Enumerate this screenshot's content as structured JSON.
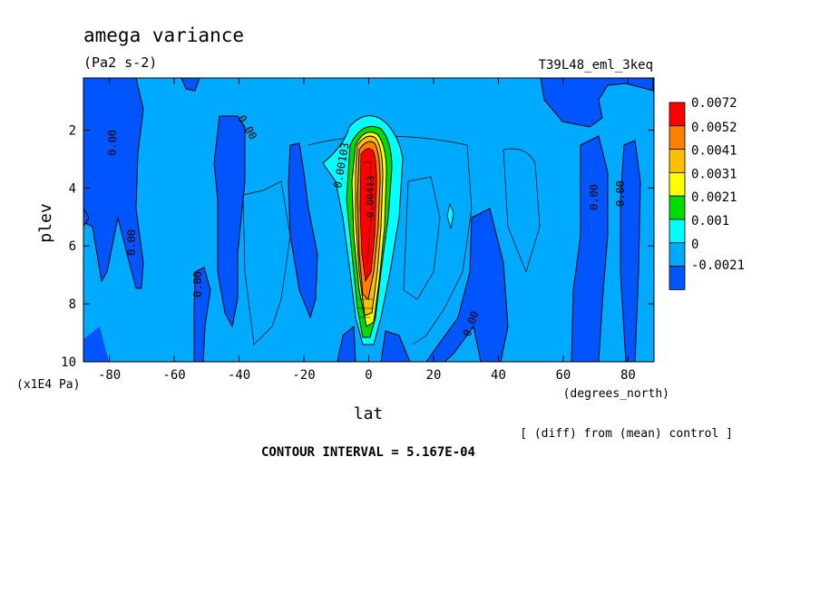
{
  "chart_data": {
    "type": "heatmap",
    "title": "amega variance",
    "units": "(Pa2 s-2)",
    "run_label": "T39L48_eml_3keq",
    "xlabel": "lat",
    "x_units": "(degrees_north)",
    "ylabel": "plev",
    "y_units": "(x1E4 Pa)",
    "x_ticks": [
      "-80",
      "-60",
      "-40",
      "-20",
      "0",
      "20",
      "40",
      "60",
      "80"
    ],
    "y_ticks": [
      "2",
      "4",
      "6",
      "8",
      "10"
    ],
    "xlim": [
      -88,
      88
    ],
    "ylim": [
      10,
      0.2
    ],
    "colorbar": {
      "labels": [
        "0.0072",
        "0.0052",
        "0.0041",
        "0.0031",
        "0.0021",
        "0.001",
        "0",
        "-0.0021"
      ],
      "colors": [
        "#ff0000",
        "#ff7f00",
        "#ffbf00",
        "#ffff00",
        "#00dd00",
        "#00ffff",
        "#00aaff",
        "#0055ff"
      ]
    },
    "contour_labels": [
      "0.00",
      "0.00",
      "0.00",
      "0.00",
      "0.00",
      "0.00",
      "0.00",
      "0.00",
      "0.00103",
      "0.00413"
    ],
    "footer_note": "[ (diff) from (mean) control ]",
    "contour_interval": "CONTOUR INTERVAL = 5.167E-04"
  }
}
